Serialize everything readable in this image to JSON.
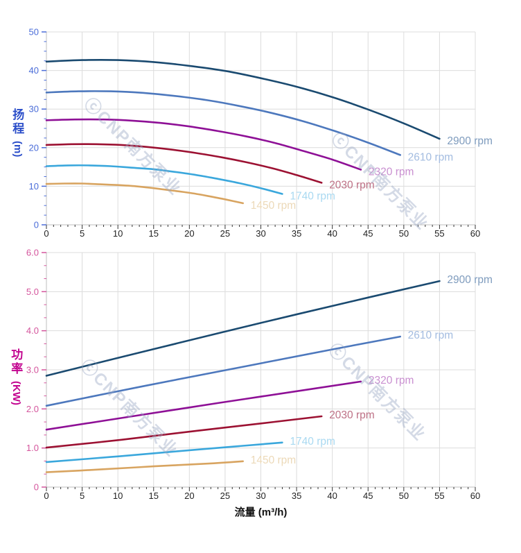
{
  "watermark": {
    "text": "ⓒCNP南方泵业"
  },
  "chart_data": [
    {
      "id": "head",
      "type": "line",
      "title": "",
      "ylabel_main": "扬程",
      "ylabel_unit": "(m)",
      "xlabel": "",
      "xlim": [
        0,
        60
      ],
      "ylim": [
        0,
        50
      ],
      "grid": true,
      "legend_position": "end-of-line-labels",
      "x_tick_labels": [
        "0",
        "5",
        "10",
        "15",
        "20",
        "25",
        "30",
        "35",
        "40",
        "45",
        "50",
        "55",
        "60"
      ],
      "y_tick_labels": [
        "0",
        "10",
        "20",
        "30",
        "40",
        "50"
      ],
      "axis_title_color": "#2b4ec9",
      "tick_label_color": "#4a6cd8",
      "x_tick_label_color": "#222222",
      "series": [
        {
          "name": "2900 rpm",
          "color": "#1a4a70",
          "label_color": "#7e9bbd",
          "points": [
            [
              0,
              42.3
            ],
            [
              5,
              42.7
            ],
            [
              10,
              42.7
            ],
            [
              15,
              42.2
            ],
            [
              20,
              41.2
            ],
            [
              25,
              39.9
            ],
            [
              30,
              38.0
            ],
            [
              35,
              35.8
            ],
            [
              40,
              33.1
            ],
            [
              45,
              29.9
            ],
            [
              50,
              26.3
            ],
            [
              55,
              22.3
            ]
          ]
        },
        {
          "name": "2610 rpm",
          "color": "#4d78bd",
          "label_color": "#a3bce0",
          "points": [
            [
              0,
              34.3
            ],
            [
              4.5,
              34.6
            ],
            [
              9,
              34.6
            ],
            [
              13.5,
              34.2
            ],
            [
              18,
              33.4
            ],
            [
              22.5,
              32.3
            ],
            [
              27,
              30.8
            ],
            [
              31.5,
              29.0
            ],
            [
              36,
              26.8
            ],
            [
              40.5,
              24.2
            ],
            [
              45,
              21.3
            ],
            [
              49.5,
              18.1
            ]
          ]
        },
        {
          "name": "2320 rpm",
          "color": "#8e1096",
          "label_color": "#c98fd0",
          "points": [
            [
              0,
              27.1
            ],
            [
              4,
              27.3
            ],
            [
              8,
              27.3
            ],
            [
              12,
              27.0
            ],
            [
              16,
              26.4
            ],
            [
              20,
              25.5
            ],
            [
              24,
              24.3
            ],
            [
              28,
              22.9
            ],
            [
              32,
              21.2
            ],
            [
              36,
              19.1
            ],
            [
              40,
              16.9
            ],
            [
              44,
              14.3
            ]
          ]
        },
        {
          "name": "2030 rpm",
          "color": "#9c1132",
          "label_color": "#bd7085",
          "points": [
            [
              0,
              20.7
            ],
            [
              3.5,
              20.9
            ],
            [
              7,
              20.9
            ],
            [
              10.5,
              20.7
            ],
            [
              14,
              20.2
            ],
            [
              17.5,
              19.5
            ],
            [
              21,
              18.6
            ],
            [
              24.5,
              17.5
            ],
            [
              28,
              16.2
            ],
            [
              31.5,
              14.7
            ],
            [
              35,
              12.9
            ],
            [
              38.5,
              10.9
            ]
          ]
        },
        {
          "name": "1740 rpm",
          "color": "#3aa7dc",
          "label_color": "#a9d9f1",
          "points": [
            [
              0,
              15.2
            ],
            [
              3,
              15.4
            ],
            [
              6,
              15.4
            ],
            [
              9,
              15.2
            ],
            [
              12,
              14.8
            ],
            [
              15,
              14.4
            ],
            [
              18,
              13.7
            ],
            [
              21,
              12.9
            ],
            [
              24,
              11.9
            ],
            [
              27,
              10.8
            ],
            [
              30,
              9.5
            ],
            [
              33,
              8.0
            ]
          ]
        },
        {
          "name": "1450 rpm",
          "color": "#d8a460",
          "label_color": "#ecd9b8",
          "points": [
            [
              0,
              10.6
            ],
            [
              2.5,
              10.7
            ],
            [
              5,
              10.7
            ],
            [
              7.5,
              10.5
            ],
            [
              10,
              10.3
            ],
            [
              12.5,
              10.0
            ],
            [
              15,
              9.5
            ],
            [
              17.5,
              8.9
            ],
            [
              20,
              8.3
            ],
            [
              22.5,
              7.5
            ],
            [
              25,
              6.6
            ],
            [
              27.5,
              5.6
            ]
          ]
        }
      ]
    },
    {
      "id": "power",
      "type": "line",
      "title": "",
      "ylabel_main": "功率",
      "ylabel_unit": "(KW)",
      "xlabel": "流量 (m³/h)",
      "xlim": [
        0,
        60
      ],
      "ylim": [
        0,
        6
      ],
      "grid": true,
      "legend_position": "end-of-line-labels",
      "x_tick_labels": [
        "0",
        "5",
        "10",
        "15",
        "20",
        "25",
        "30",
        "35",
        "40",
        "45",
        "50",
        "55",
        "60"
      ],
      "y_tick_labels": [
        "0",
        "1.0",
        "2.0",
        "3.0",
        "4.0",
        "5.0",
        "6.0"
      ],
      "axis_title_color": "#c2038f",
      "tick_label_color": "#d4549c",
      "x_tick_label_color": "#222222",
      "series": [
        {
          "name": "2900 rpm",
          "color": "#1a4a70",
          "label_color": "#7e9bbd",
          "points": [
            [
              0,
              2.85
            ],
            [
              15,
              3.53
            ],
            [
              30,
              4.2
            ],
            [
              45,
              4.85
            ],
            [
              55,
              5.27
            ]
          ]
        },
        {
          "name": "2610 rpm",
          "color": "#4d78bd",
          "label_color": "#a3bce0",
          "points": [
            [
              0,
              2.08
            ],
            [
              13.5,
              2.58
            ],
            [
              27,
              3.06
            ],
            [
              40.5,
              3.54
            ],
            [
              49.5,
              3.85
            ]
          ]
        },
        {
          "name": "2320 rpm",
          "color": "#8e1096",
          "label_color": "#c98fd0",
          "points": [
            [
              0,
              1.47
            ],
            [
              12,
              1.81
            ],
            [
              24,
              2.15
            ],
            [
              36,
              2.48
            ],
            [
              44,
              2.7
            ]
          ]
        },
        {
          "name": "2030 rpm",
          "color": "#9c1132",
          "label_color": "#bd7085",
          "points": [
            [
              0,
              1.01
            ],
            [
              10.5,
              1.21
            ],
            [
              21,
              1.44
            ],
            [
              31.5,
              1.66
            ],
            [
              38.5,
              1.81
            ]
          ]
        },
        {
          "name": "1740 rpm",
          "color": "#3aa7dc",
          "label_color": "#a9d9f1",
          "points": [
            [
              0,
              0.64
            ],
            [
              9,
              0.77
            ],
            [
              18,
              0.91
            ],
            [
              27,
              1.05
            ],
            [
              33,
              1.14
            ]
          ]
        },
        {
          "name": "1450 rpm",
          "color": "#d8a460",
          "label_color": "#ecd9b8",
          "points": [
            [
              0,
              0.38
            ],
            [
              7.5,
              0.45
            ],
            [
              15,
              0.53
            ],
            [
              22.5,
              0.6
            ],
            [
              27.5,
              0.66
            ]
          ]
        }
      ]
    }
  ]
}
